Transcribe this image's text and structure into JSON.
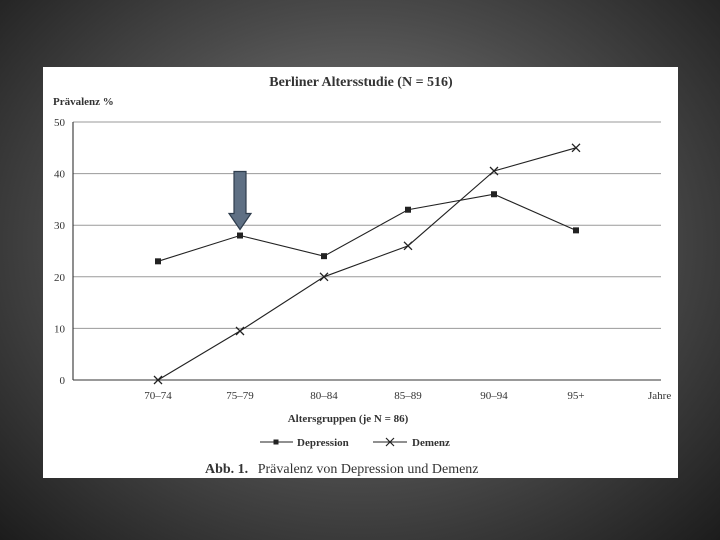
{
  "chart_data": {
    "type": "line",
    "title": "Berliner Altersstudie (N = 516)",
    "ylabel": "Prävalenz %",
    "xlabel": "Altersgruppen (je N = 86)",
    "x_unit_label": "Jahre",
    "categories": [
      "70–74",
      "75–79",
      "80–84",
      "85–89",
      "90–94",
      "95+"
    ],
    "ylim": [
      0,
      50
    ],
    "yticks": [
      "0",
      "10",
      "20",
      "30",
      "40",
      "50"
    ],
    "grid": true,
    "legend_position": "bottom",
    "series": [
      {
        "name": "Depression",
        "marker": "square",
        "values": [
          23,
          28,
          24,
          33,
          36,
          29
        ]
      },
      {
        "name": "Demenz",
        "marker": "x",
        "values": [
          0,
          9.5,
          20,
          26,
          40.5,
          45
        ]
      }
    ],
    "caption_label": "Abb. 1.",
    "caption_text": "Prävalenz von Depression und Demenz",
    "annotation": {
      "type": "arrow-down",
      "category": "75–79",
      "series": "Depression",
      "color": "#5f7084"
    }
  }
}
